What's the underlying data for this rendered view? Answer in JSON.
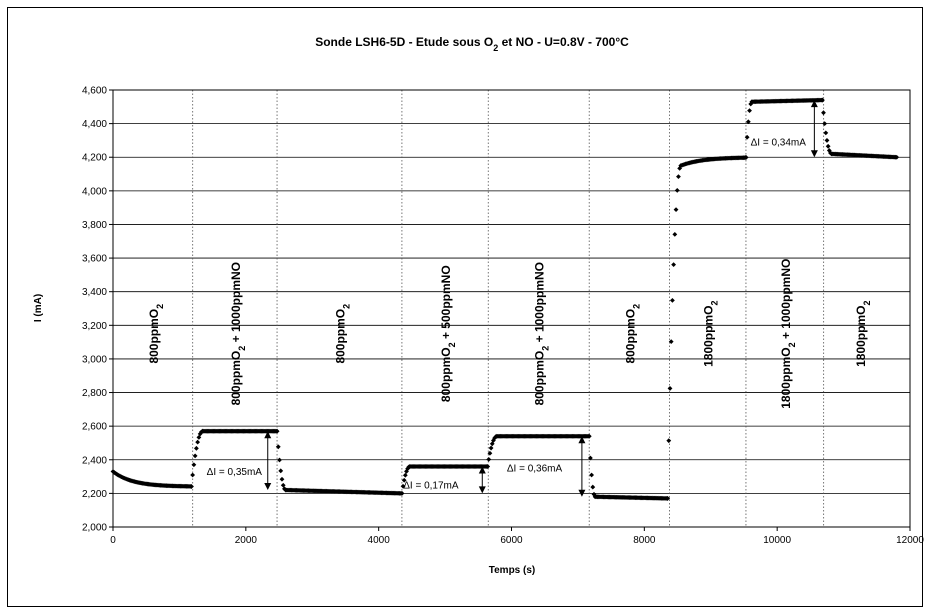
{
  "chart_data": {
    "type": "scatter",
    "title_parts": [
      "Sonde LSH6-5D - Etude sous O",
      "2",
      " et NO - U=0.8V - 700°C"
    ],
    "xlabel": "Temps (s)",
    "ylabel": "I (mA)",
    "xlim": [
      0,
      12000
    ],
    "ylim": [
      2.0,
      4.6
    ],
    "xticks": [
      "0",
      "2000",
      "4000",
      "6000",
      "8000",
      "10000",
      "12000"
    ],
    "yticks": [
      "2,000",
      "2,200",
      "2,400",
      "2,600",
      "2,800",
      "3,000",
      "3,200",
      "3,400",
      "3,600",
      "3,800",
      "4,000",
      "4,200",
      "4,400",
      "4,600"
    ],
    "grid": "horizontal",
    "marker_color": "#000000",
    "segments": [
      {
        "x_start": 0,
        "x_end": 1180,
        "y_start": 2.33,
        "y_end": 2.24,
        "settle": "decay"
      },
      {
        "x_start": 1180,
        "x_end": 1350,
        "y_start": 2.24,
        "y_end": 2.57,
        "settle": "step"
      },
      {
        "x_start": 1350,
        "x_end": 2470,
        "y_start": 2.57,
        "y_end": 2.57,
        "settle": "flat"
      },
      {
        "x_start": 2470,
        "x_end": 2600,
        "y_start": 2.57,
        "y_end": 2.22,
        "settle": "step"
      },
      {
        "x_start": 2600,
        "x_end": 4350,
        "y_start": 2.22,
        "y_end": 2.2,
        "settle": "flat"
      },
      {
        "x_start": 4350,
        "x_end": 4470,
        "y_start": 2.2,
        "y_end": 2.36,
        "settle": "step"
      },
      {
        "x_start": 4470,
        "x_end": 5640,
        "y_start": 2.36,
        "y_end": 2.36,
        "settle": "flat"
      },
      {
        "x_start": 5640,
        "x_end": 5780,
        "y_start": 2.36,
        "y_end": 2.54,
        "settle": "step"
      },
      {
        "x_start": 5780,
        "x_end": 7170,
        "y_start": 2.54,
        "y_end": 2.54,
        "settle": "flat"
      },
      {
        "x_start": 7170,
        "x_end": 7260,
        "y_start": 2.54,
        "y_end": 2.18,
        "settle": "step"
      },
      {
        "x_start": 7260,
        "x_end": 8350,
        "y_start": 2.18,
        "y_end": 2.17,
        "settle": "flat"
      },
      {
        "x_start": 8350,
        "x_end": 8550,
        "y_start": 2.17,
        "y_end": 4.15,
        "settle": "step"
      },
      {
        "x_start": 8550,
        "x_end": 9530,
        "y_start": 4.15,
        "y_end": 4.2,
        "settle": "rise"
      },
      {
        "x_start": 9530,
        "x_end": 9620,
        "y_start": 4.2,
        "y_end": 4.53,
        "settle": "step"
      },
      {
        "x_start": 9620,
        "x_end": 10680,
        "y_start": 4.53,
        "y_end": 4.54,
        "settle": "flat"
      },
      {
        "x_start": 10680,
        "x_end": 10820,
        "y_start": 4.54,
        "y_end": 4.22,
        "settle": "step"
      },
      {
        "x_start": 10820,
        "x_end": 11800,
        "y_start": 4.22,
        "y_end": 4.2,
        "settle": "flat"
      }
    ],
    "dividers_x": [
      1200,
      2470,
      4350,
      5650,
      7170,
      8380,
      9530,
      10700
    ],
    "regions": [
      {
        "x": 600,
        "base": "800ppmO",
        "sub": "2",
        "rest": ""
      },
      {
        "x": 1840,
        "base": "800ppmO",
        "sub": "2",
        "rest": " + 1000ppmNO"
      },
      {
        "x": 3410,
        "base": "800ppmO",
        "sub": "2",
        "rest": ""
      },
      {
        "x": 5000,
        "base": "800ppmO",
        "sub": "2",
        "rest": " + 500ppmNO"
      },
      {
        "x": 6410,
        "base": "800ppmO",
        "sub": "2",
        "rest": " + 1000ppmNO"
      },
      {
        "x": 7775,
        "base": "800ppmO",
        "sub": "2",
        "rest": ""
      },
      {
        "x": 8950,
        "base": "1800ppmO",
        "sub": "2",
        "rest": ""
      },
      {
        "x": 10115,
        "base": "1800ppmO",
        "sub": "2",
        "rest": " + 1000ppmNO"
      },
      {
        "x": 11250,
        "base": "1800ppmO",
        "sub": "2",
        "rest": ""
      }
    ],
    "annotations": [
      {
        "label": "ΔI = 0,35mA",
        "arrow_x": 2330,
        "y_top": 2.57,
        "y_bot": 2.22,
        "text_x": 1410,
        "text_y": 2.33
      },
      {
        "label": "ΔI = 0,17mA",
        "arrow_x": 5560,
        "y_top": 2.36,
        "y_bot": 2.2,
        "text_x": 4370,
        "text_y": 2.25
      },
      {
        "label": "ΔI = 0,36mA",
        "arrow_x": 7060,
        "y_top": 2.54,
        "y_bot": 2.18,
        "text_x": 5930,
        "text_y": 2.35
      },
      {
        "label": "ΔI = 0,34mA",
        "arrow_x": 10560,
        "y_top": 4.54,
        "y_bot": 4.2,
        "text_x": 9600,
        "text_y": 4.29
      }
    ]
  }
}
